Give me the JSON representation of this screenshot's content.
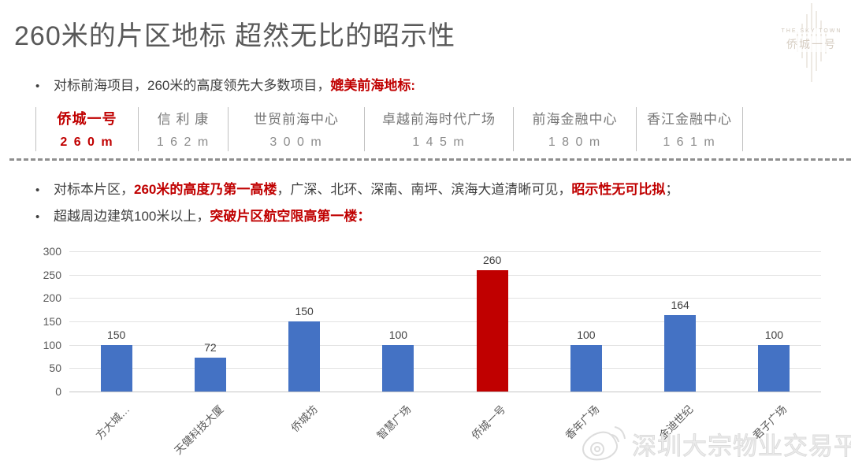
{
  "slide": {
    "title": "260米的片区地标 超然无比的昭示性",
    "logo": {
      "line1": "THE SKY TOWN",
      "line2": "侨城一号"
    },
    "bullets": [
      {
        "name": "bullet-benchmark-qianhai",
        "parts": [
          {
            "t": "对标前海项目，260米的高度领先大多数项目，",
            "red": false
          },
          {
            "t": "媲美前海地标:",
            "red": true
          }
        ]
      },
      {
        "name": "bullet-benchmark-district",
        "parts": [
          {
            "t": "对标本片区，",
            "red": false
          },
          {
            "t": "260米的高度乃第一高楼",
            "red": true
          },
          {
            "t": "，广深、北环、深南、南坪、滨海大道清晰可见，",
            "red": false
          },
          {
            "t": "昭示性无可比拟",
            "red": true
          },
          {
            "t": "；",
            "red": false
          }
        ]
      },
      {
        "name": "bullet-height-limit",
        "parts": [
          {
            "t": "超越周边建筑100米以上，",
            "red": false
          },
          {
            "t": "突破片区航空限高第一楼",
            "red": true
          },
          {
            "t": "：",
            "red": true
          }
        ]
      }
    ],
    "comparison": {
      "items": [
        {
          "name": "侨城一号",
          "value": "2 6 0 m",
          "highlight": true
        },
        {
          "name": "信 利 康",
          "value": "1 6 2 m",
          "highlight": false
        },
        {
          "name": "世贸前海中心",
          "value": "3 0 0 m",
          "highlight": false
        },
        {
          "name": "卓越前海时代广场",
          "value": "1 4 5 m",
          "highlight": false
        },
        {
          "name": "前海金融中心",
          "value": "1 8 0 m",
          "highlight": false
        },
        {
          "name": "香江金融中心",
          "value": "1 6 1 m",
          "highlight": false
        }
      ]
    },
    "watermark": {
      "text": "深圳大宗物业交易平台"
    },
    "colors": {
      "accent_red": "#c00000",
      "bar_blue": "#4472c4",
      "title_gray": "#595959"
    }
  },
  "chart_data": {
    "type": "bar",
    "title": "",
    "xlabel": "",
    "ylabel": "",
    "categories": [
      "方大城…",
      "天健科技大厦",
      "侨城坊",
      "智慧广场",
      "侨城一号",
      "香年广场",
      "金迪世纪",
      "君子广场"
    ],
    "values": [
      150,
      72,
      150,
      100,
      260,
      100,
      164,
      100
    ],
    "bar_heights_as_drawn": [
      100,
      72,
      150,
      100,
      260,
      100,
      164,
      100
    ],
    "highlight_index": 4,
    "bar_color": "#4472c4",
    "highlight_color": "#c00000",
    "ylim": [
      0,
      300
    ],
    "ytick_interval": 50,
    "grid": true,
    "legend": false
  }
}
